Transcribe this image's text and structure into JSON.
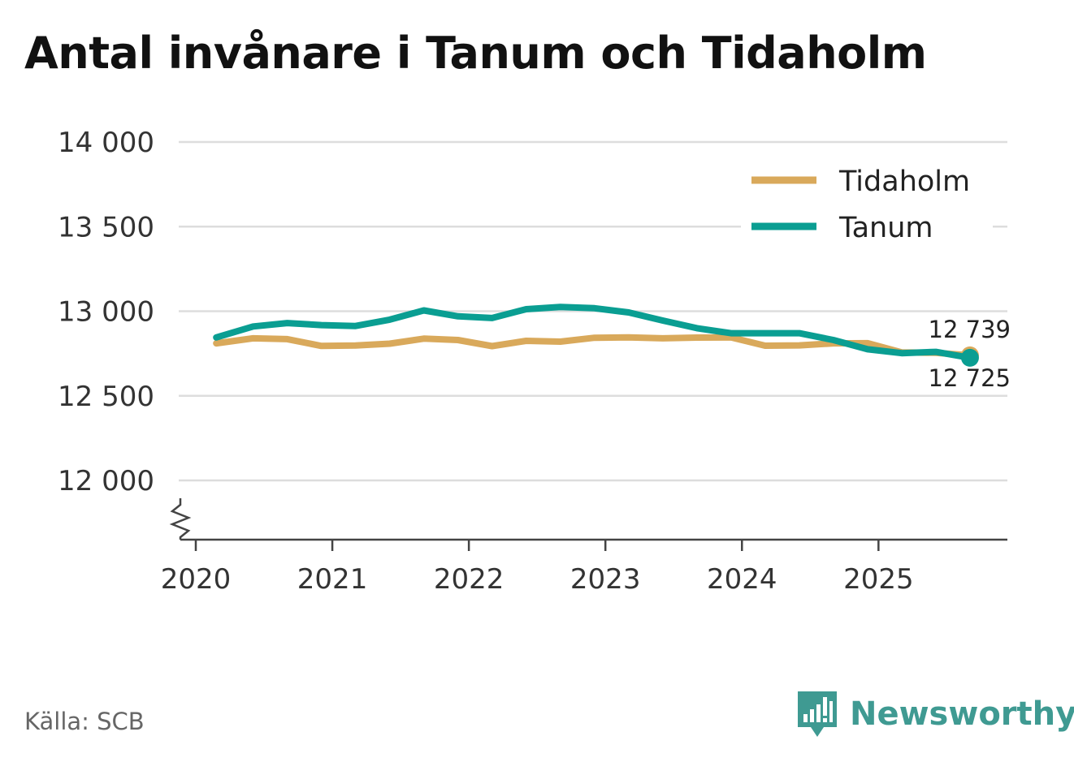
{
  "title": "Antal invånare i Tanum och Tidaholm",
  "source": "Källa: SCB",
  "brand": "Newsworthy",
  "colors": {
    "tidaholm": "#d9a95b",
    "tanum": "#0a9e92",
    "grid": "#dddddd",
    "axis": "#444444"
  },
  "chart_data": {
    "type": "line",
    "title": "Antal invånare i Tanum och Tidaholm",
    "xlabel": "",
    "ylabel": "",
    "xlim": [
      2020.0,
      2025.95
    ],
    "ylim": [
      11650,
      14000
    ],
    "yticks": [
      12000,
      12500,
      13000,
      13500,
      14000
    ],
    "ytick_labels": [
      "12 000",
      "12 500",
      "13 000",
      "13 500",
      "14 000"
    ],
    "xticks": [
      2020,
      2021,
      2022,
      2023,
      2024,
      2025
    ],
    "xtick_labels": [
      "2020",
      "2021",
      "2022",
      "2023",
      "2024",
      "2025"
    ],
    "axis_break": true,
    "grid": true,
    "legend_position": "top-right",
    "legend": [
      "Tidaholm",
      "Tanum"
    ],
    "series": [
      {
        "name": "Tidaholm",
        "color": "#d9a95b",
        "x": [
          2020.15,
          2020.42,
          2020.67,
          2020.92,
          2021.17,
          2021.42,
          2021.67,
          2021.92,
          2022.17,
          2022.42,
          2022.67,
          2022.92,
          2023.17,
          2023.42,
          2023.67,
          2023.92,
          2024.17,
          2024.42,
          2024.67,
          2024.92,
          2025.17,
          2025.42,
          2025.67
        ],
        "values": [
          12810,
          12840,
          12835,
          12795,
          12797,
          12808,
          12838,
          12830,
          12794,
          12825,
          12820,
          12843,
          12845,
          12840,
          12844,
          12845,
          12796,
          12798,
          12810,
          12811,
          12757,
          12754,
          12739
        ]
      },
      {
        "name": "Tanum",
        "color": "#0a9e92",
        "x": [
          2020.15,
          2020.42,
          2020.67,
          2020.92,
          2021.17,
          2021.42,
          2021.67,
          2021.92,
          2022.17,
          2022.42,
          2022.67,
          2022.92,
          2023.17,
          2023.42,
          2023.67,
          2023.92,
          2024.17,
          2024.42,
          2024.67,
          2024.92,
          2025.17,
          2025.42,
          2025.67
        ],
        "values": [
          12845,
          12910,
          12930,
          12918,
          12913,
          12950,
          13005,
          12970,
          12960,
          13012,
          13025,
          13018,
          12993,
          12945,
          12900,
          12870,
          12870,
          12870,
          12830,
          12775,
          12752,
          12760,
          12725
        ]
      }
    ],
    "end_labels": [
      {
        "series": "Tidaholm",
        "text": "12 739",
        "value": 12739
      },
      {
        "series": "Tanum",
        "text": "12 725",
        "value": 12725
      }
    ]
  }
}
